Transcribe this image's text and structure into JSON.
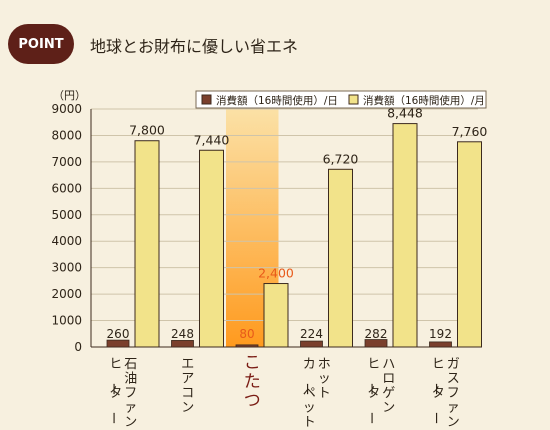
{
  "header": {
    "badge": "POINT",
    "title": "地球とお財布に優しい省エネ"
  },
  "colors": {
    "background": "#f7f0df",
    "daily_bar": "#7a3f2c",
    "monthly_bar": "#f2e38a",
    "bar_stroke": "#3c2a1e",
    "highlight_text": "#7a1c14",
    "highlight_value": "#e85a1a"
  },
  "chart_data": {
    "type": "bar",
    "unit_label": "（円）",
    "categories": [
      "石油ファン\nヒーター",
      "エアコン",
      "こたつ",
      "ホット\nカーペット",
      "ハロゲン\nヒーター",
      "ガスファン\nヒーター"
    ],
    "highlight_category": "こたつ",
    "series": [
      {
        "name": "消費額（16時間使用）/日",
        "values": [
          260,
          248,
          80,
          224,
          282,
          192
        ]
      },
      {
        "name": "消費額（16時間使用）/月",
        "values": [
          7800,
          7440,
          2400,
          6720,
          8448,
          7760
        ]
      }
    ],
    "value_labels_daily": [
      "260",
      "248",
      "80",
      "224",
      "282",
      "192"
    ],
    "value_labels_monthly": [
      "7,800",
      "7,440",
      "2,400",
      "6,720",
      "8,448",
      "7,760"
    ],
    "yticks": [
      "0",
      "1000",
      "2000",
      "3000",
      "4000",
      "5000",
      "6000",
      "7000",
      "8000",
      "9000"
    ],
    "ylim": [
      0,
      9000
    ],
    "legend_position": "top",
    "grid": true
  }
}
